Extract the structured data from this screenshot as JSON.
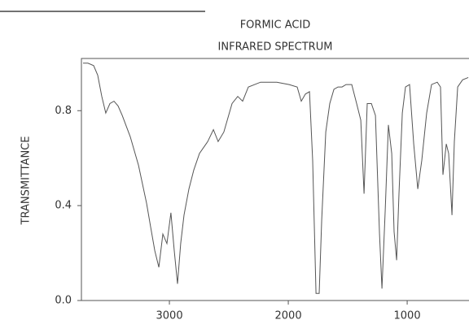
{
  "chart_data": {
    "type": "line",
    "title": "FORMIC ACID",
    "subtitle": "INFRARED SPECTRUM",
    "y_label": "TRANSMITTANCE",
    "color": "#555555",
    "xlim": [
      3740,
      480
    ],
    "ylim": [
      0,
      1.02
    ],
    "xticks": [
      3000,
      2000,
      1000
    ],
    "yticks": [
      {
        "value": 0,
        "label": "0.0"
      },
      0.4,
      0.8
    ],
    "x": [
      3726,
      3685,
      3637,
      3603,
      3569,
      3535,
      3500,
      3466,
      3432,
      3397,
      3329,
      3260,
      3192,
      3158,
      3123,
      3089,
      3055,
      3021,
      2987,
      2959,
      2932,
      2905,
      2877,
      2836,
      2795,
      2747,
      2678,
      2630,
      2590,
      2542,
      2473,
      2425,
      2384,
      2336,
      2233,
      2096,
      1993,
      1925,
      1891,
      1856,
      1822,
      1795,
      1767,
      1740,
      1719,
      1685,
      1651,
      1616,
      1582,
      1548,
      1514,
      1466,
      1425,
      1390,
      1363,
      1336,
      1301,
      1267,
      1233,
      1212,
      1185,
      1158,
      1130,
      1110,
      1089,
      1069,
      1041,
      1014,
      980,
      945,
      911,
      877,
      836,
      795,
      747,
      720,
      699,
      671,
      651,
      623,
      603,
      575,
      534,
      486
    ],
    "values": [
      1.0,
      1.0,
      0.99,
      0.95,
      0.86,
      0.79,
      0.83,
      0.84,
      0.82,
      0.78,
      0.69,
      0.57,
      0.41,
      0.31,
      0.21,
      0.14,
      0.28,
      0.24,
      0.37,
      0.21,
      0.07,
      0.24,
      0.36,
      0.47,
      0.55,
      0.62,
      0.67,
      0.72,
      0.67,
      0.71,
      0.83,
      0.86,
      0.84,
      0.9,
      0.92,
      0.92,
      0.91,
      0.9,
      0.84,
      0.87,
      0.88,
      0.59,
      0.03,
      0.03,
      0.34,
      0.71,
      0.83,
      0.89,
      0.9,
      0.9,
      0.91,
      0.91,
      0.83,
      0.76,
      0.45,
      0.83,
      0.83,
      0.78,
      0.28,
      0.05,
      0.38,
      0.74,
      0.62,
      0.29,
      0.17,
      0.45,
      0.79,
      0.9,
      0.91,
      0.66,
      0.47,
      0.59,
      0.79,
      0.91,
      0.92,
      0.9,
      0.53,
      0.66,
      0.62,
      0.36,
      0.67,
      0.9,
      0.93,
      0.94
    ]
  }
}
